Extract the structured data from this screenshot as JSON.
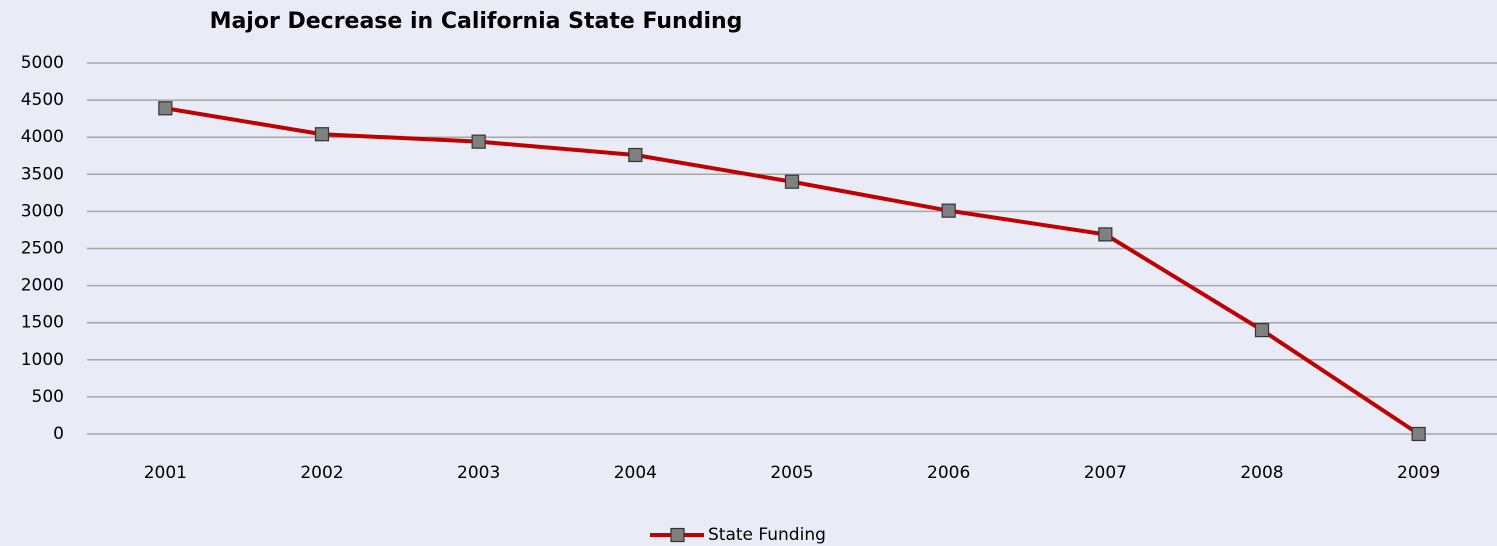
{
  "chart_data": {
    "type": "line",
    "title": "Major Decrease in California State Funding",
    "categories": [
      "2001",
      "2002",
      "2003",
      "2004",
      "2005",
      "2006",
      "2007",
      "2008",
      "2009"
    ],
    "series": [
      {
        "name": "State Funding",
        "color": "#c00000",
        "marker_color": "#808080",
        "values": [
          4390,
          4040,
          3940,
          3760,
          3400,
          3010,
          2690,
          1400,
          0
        ]
      }
    ],
    "ylim": [
      0,
      5000
    ],
    "yticks": [
      0,
      500,
      1000,
      1500,
      2000,
      2500,
      3000,
      3500,
      4000,
      4500,
      5000
    ],
    "grid": true,
    "legend": "bottom"
  }
}
